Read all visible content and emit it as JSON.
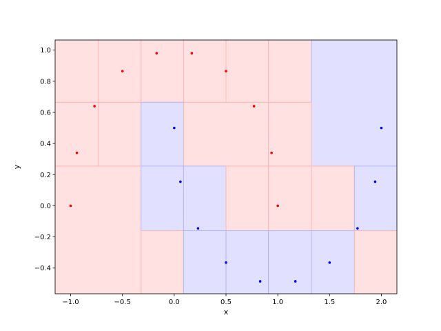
{
  "chart_data": {
    "type": "scatter",
    "title": "",
    "xlabel": "x",
    "ylabel": "y",
    "xlim": [
      -1.15,
      2.15
    ],
    "ylim": [
      -0.565,
      1.065
    ],
    "xticks": [
      -1.0,
      -0.5,
      0.0,
      0.5,
      1.0,
      1.5,
      2.0
    ],
    "xtick_labels": [
      "−1.0",
      "−0.5",
      "0.0",
      "0.5",
      "1.0",
      "1.5",
      "2.0"
    ],
    "yticks": [
      -0.4,
      -0.2,
      0.0,
      0.2,
      0.4,
      0.6,
      0.8,
      1.0
    ],
    "ytick_labels": [
      "−0.4",
      "−0.2",
      "0.0",
      "0.2",
      "0.4",
      "0.6",
      "0.8",
      "1.0"
    ],
    "grid": false,
    "legend": "none",
    "colors": {
      "red_point": "#ff0000",
      "blue_point": "#0000ff",
      "red_region": "#ffe1e1",
      "blue_region": "#e1e1ff",
      "red_edge": "#ffb4b4",
      "blue_edge": "#b4b4ff"
    },
    "series": [
      {
        "color": "red",
        "points": [
          [
            -1.0,
            0.0
          ],
          [
            -0.94,
            0.34
          ],
          [
            -0.77,
            0.64
          ],
          [
            -0.5,
            0.865
          ],
          [
            -0.17,
            0.98
          ],
          [
            0.17,
            0.98
          ],
          [
            0.5,
            0.865
          ],
          [
            0.77,
            0.64
          ],
          [
            0.94,
            0.34
          ],
          [
            1.0,
            0.0
          ]
        ]
      },
      {
        "color": "blue",
        "points": [
          [
            0.0,
            0.5
          ],
          [
            0.06,
            0.155
          ],
          [
            0.23,
            -0.145
          ],
          [
            0.5,
            -0.365
          ],
          [
            0.83,
            -0.485
          ],
          [
            1.17,
            -0.485
          ],
          [
            1.5,
            -0.365
          ],
          [
            1.77,
            -0.145
          ],
          [
            1.94,
            0.155
          ],
          [
            2.0,
            0.5
          ]
        ]
      }
    ],
    "regions": [
      {
        "x": [
          -1.15,
          -0.73
        ],
        "y": [
          0.665,
          1.065
        ],
        "class": "red"
      },
      {
        "x": [
          -0.73,
          -0.32
        ],
        "y": [
          0.665,
          1.065
        ],
        "class": "red"
      },
      {
        "x": [
          -0.32,
          0.09
        ],
        "y": [
          0.665,
          1.065
        ],
        "class": "red"
      },
      {
        "x": [
          0.09,
          0.5
        ],
        "y": [
          0.665,
          1.065
        ],
        "class": "red"
      },
      {
        "x": [
          0.5,
          0.91
        ],
        "y": [
          0.665,
          1.065
        ],
        "class": "red"
      },
      {
        "x": [
          0.91,
          1.325
        ],
        "y": [
          0.665,
          1.065
        ],
        "class": "red"
      },
      {
        "x": [
          1.325,
          2.15
        ],
        "y": [
          0.255,
          1.065
        ],
        "class": "blue"
      },
      {
        "x": [
          -1.15,
          -0.73
        ],
        "y": [
          0.255,
          0.665
        ],
        "class": "red"
      },
      {
        "x": [
          -0.73,
          -0.32
        ],
        "y": [
          0.255,
          0.665
        ],
        "class": "red"
      },
      {
        "x": [
          -0.32,
          0.09
        ],
        "y": [
          0.255,
          0.665
        ],
        "class": "blue"
      },
      {
        "x": [
          0.09,
          0.91
        ],
        "y": [
          0.255,
          0.665
        ],
        "class": "red"
      },
      {
        "x": [
          0.91,
          1.325
        ],
        "y": [
          0.255,
          0.665
        ],
        "class": "red"
      },
      {
        "x": [
          -1.15,
          -0.32
        ],
        "y": [
          -0.565,
          0.255
        ],
        "class": "red"
      },
      {
        "x": [
          -0.32,
          0.09
        ],
        "y": [
          -0.16,
          0.255
        ],
        "class": "blue"
      },
      {
        "x": [
          0.09,
          0.5
        ],
        "y": [
          -0.16,
          0.255
        ],
        "class": "blue"
      },
      {
        "x": [
          0.5,
          0.91
        ],
        "y": [
          -0.16,
          0.255
        ],
        "class": "red"
      },
      {
        "x": [
          0.91,
          1.325
        ],
        "y": [
          -0.16,
          0.255
        ],
        "class": "red"
      },
      {
        "x": [
          1.325,
          1.74
        ],
        "y": [
          -0.16,
          0.255
        ],
        "class": "red"
      },
      {
        "x": [
          1.74,
          2.15
        ],
        "y": [
          -0.16,
          0.255
        ],
        "class": "blue"
      },
      {
        "x": [
          -0.32,
          0.09
        ],
        "y": [
          -0.565,
          -0.16
        ],
        "class": "red"
      },
      {
        "x": [
          0.09,
          0.5
        ],
        "y": [
          -0.565,
          -0.16
        ],
        "class": "blue"
      },
      {
        "x": [
          0.5,
          0.91
        ],
        "y": [
          -0.565,
          -0.16
        ],
        "class": "blue"
      },
      {
        "x": [
          0.91,
          1.325
        ],
        "y": [
          -0.565,
          -0.16
        ],
        "class": "blue"
      },
      {
        "x": [
          1.325,
          1.74
        ],
        "y": [
          -0.565,
          -0.16
        ],
        "class": "blue"
      },
      {
        "x": [
          1.74,
          2.15
        ],
        "y": [
          -0.565,
          -0.16
        ],
        "class": "red"
      }
    ]
  }
}
